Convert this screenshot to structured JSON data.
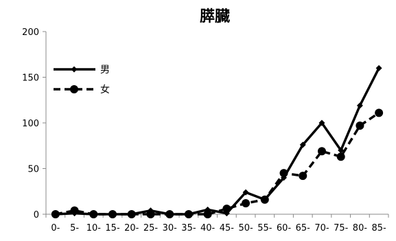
{
  "chart_data": {
    "type": "line",
    "title": "膵臓",
    "xlabel": "",
    "ylabel": "",
    "categories": [
      "0-",
      "5-",
      "10-",
      "15-",
      "20-",
      "25-",
      "30-",
      "35-",
      "40-",
      "45-",
      "50-",
      "55-",
      "60-",
      "65-",
      "70-",
      "75-",
      "80-",
      "85-"
    ],
    "ylim": [
      0,
      200
    ],
    "yticks": [
      "0",
      "50",
      "100",
      "150",
      "200"
    ],
    "grid": false,
    "legend_position": "top-left",
    "series": [
      {
        "name": "男",
        "line_style": "solid",
        "marker": "diamond",
        "color": "#000000",
        "values": [
          0,
          1,
          0,
          0,
          0,
          4,
          0,
          0,
          5,
          1,
          24,
          16,
          40,
          76,
          100,
          70,
          119,
          160
        ]
      },
      {
        "name": "女",
        "line_style": "dashed",
        "marker": "circle",
        "color": "#000000",
        "values": [
          0,
          4,
          0,
          0,
          0,
          0,
          0,
          0,
          0,
          6,
          12,
          16,
          45,
          42,
          69,
          63,
          97,
          111
        ]
      }
    ]
  }
}
